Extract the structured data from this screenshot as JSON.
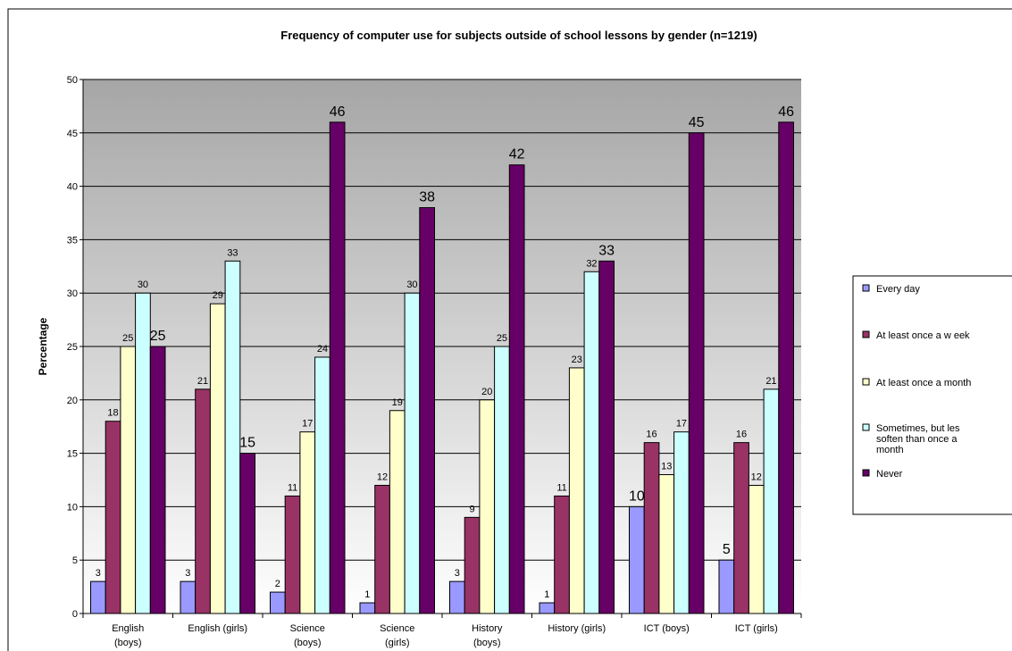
{
  "chart_data": {
    "type": "bar",
    "title": "Frequency of computer use for subjects outside of school lessons by gender (n=1219)",
    "xlabel": "",
    "ylabel": "Percentage",
    "ylim": [
      0,
      50
    ],
    "yticks": [
      0,
      5,
      10,
      15,
      20,
      25,
      30,
      35,
      40,
      45,
      50
    ],
    "grid": true,
    "legend_position": "right",
    "categories": [
      [
        "English",
        "(boys)"
      ],
      [
        "English (girls)"
      ],
      [
        "Science",
        "(boys)"
      ],
      [
        "Science",
        "(girls)"
      ],
      [
        "History",
        "(boys)"
      ],
      [
        "History (girls)"
      ],
      [
        "ICT (boys)"
      ],
      [
        "ICT (girls)"
      ]
    ],
    "series": [
      {
        "name": "Every day",
        "legend_lines": [
          "Every day"
        ],
        "color": "#9999ff",
        "values": [
          3,
          3,
          2,
          1,
          3,
          1,
          10,
          5
        ]
      },
      {
        "name": "At least once a week",
        "legend_lines": [
          "At least once a w eek"
        ],
        "color": "#993366",
        "values": [
          18,
          21,
          11,
          12,
          9,
          11,
          16,
          16
        ]
      },
      {
        "name": "At least once a month",
        "legend_lines": [
          "At least once a month"
        ],
        "color": "#ffffcc",
        "values": [
          25,
          29,
          17,
          19,
          20,
          23,
          13,
          12
        ]
      },
      {
        "name": "Sometimes, but les soften than once a month",
        "legend_lines": [
          "Sometimes, but les",
          "soften than once a",
          "month"
        ],
        "color": "#ccffff",
        "values": [
          30,
          33,
          24,
          30,
          25,
          32,
          17,
          21
        ]
      },
      {
        "name": "Never",
        "legend_lines": [
          "Never"
        ],
        "color": "#660066",
        "values": [
          25,
          15,
          46,
          38,
          42,
          33,
          45,
          46
        ]
      }
    ]
  }
}
